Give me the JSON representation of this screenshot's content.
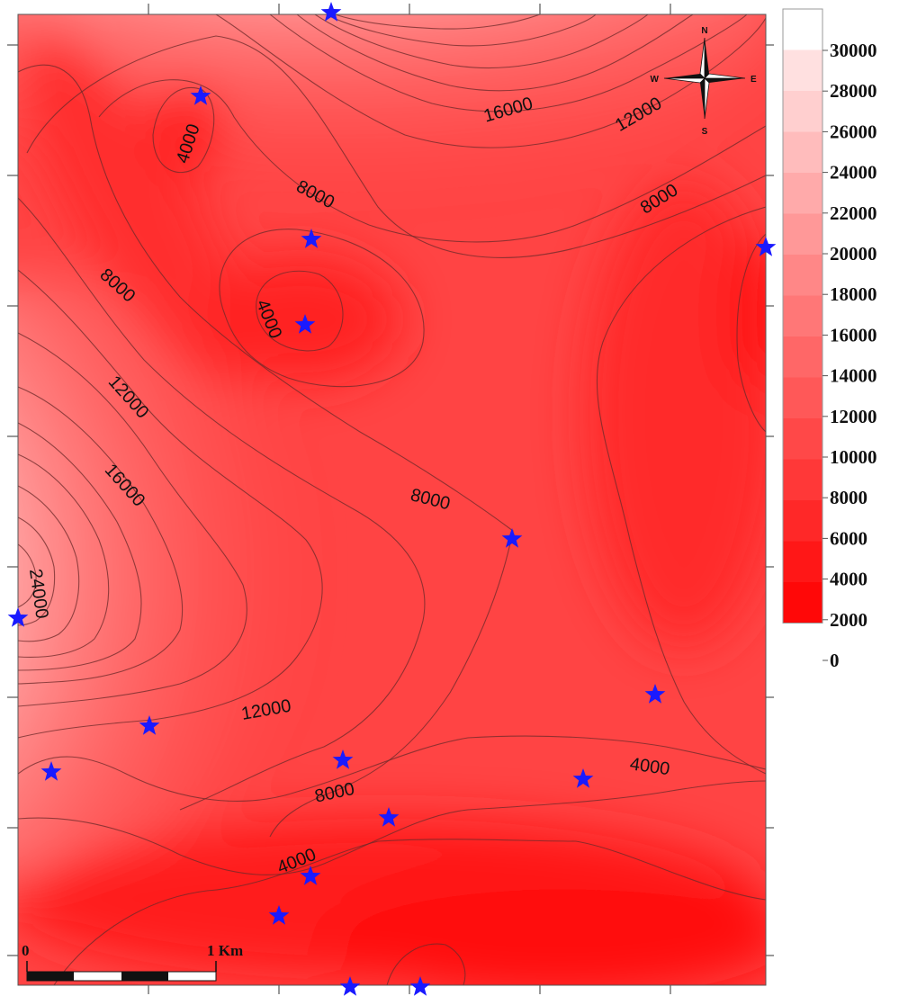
{
  "map": {
    "color_low": "#ff0000",
    "color_high": "#ffffff",
    "contour_color": "#6e2a2a",
    "well_marker_color": "#1a1aff",
    "well_marker_icon": "star-icon",
    "well_count": 17
  },
  "contour_labels": [
    "4000",
    "4000",
    "4000",
    "4000",
    "8000",
    "8000",
    "8000",
    "8000",
    "8000",
    "12000",
    "12000",
    "12000",
    "16000",
    "16000",
    "24000"
  ],
  "legend": {
    "labels": [
      "30000",
      "28000",
      "26000",
      "24000",
      "22000",
      "20000",
      "18000",
      "16000",
      "14000",
      "12000",
      "10000",
      "8000",
      "6000",
      "4000",
      "2000",
      "0"
    ],
    "colors": [
      "#ffffff",
      "#ffe0e0",
      "#ffcfcf",
      "#ffbcbc",
      "#ffaaaa",
      "#ff9898",
      "#ff8787",
      "#ff7777",
      "#ff6767",
      "#ff5858",
      "#ff4848",
      "#ff3838",
      "#ff2828",
      "#ff1717",
      "#ff0808"
    ]
  },
  "compass": {
    "north": "N",
    "south": "S",
    "east": "E",
    "west": "W",
    "icon": "compass-rose-icon"
  },
  "scale_bar": {
    "start_label": "0",
    "end_label": "1 Km"
  }
}
